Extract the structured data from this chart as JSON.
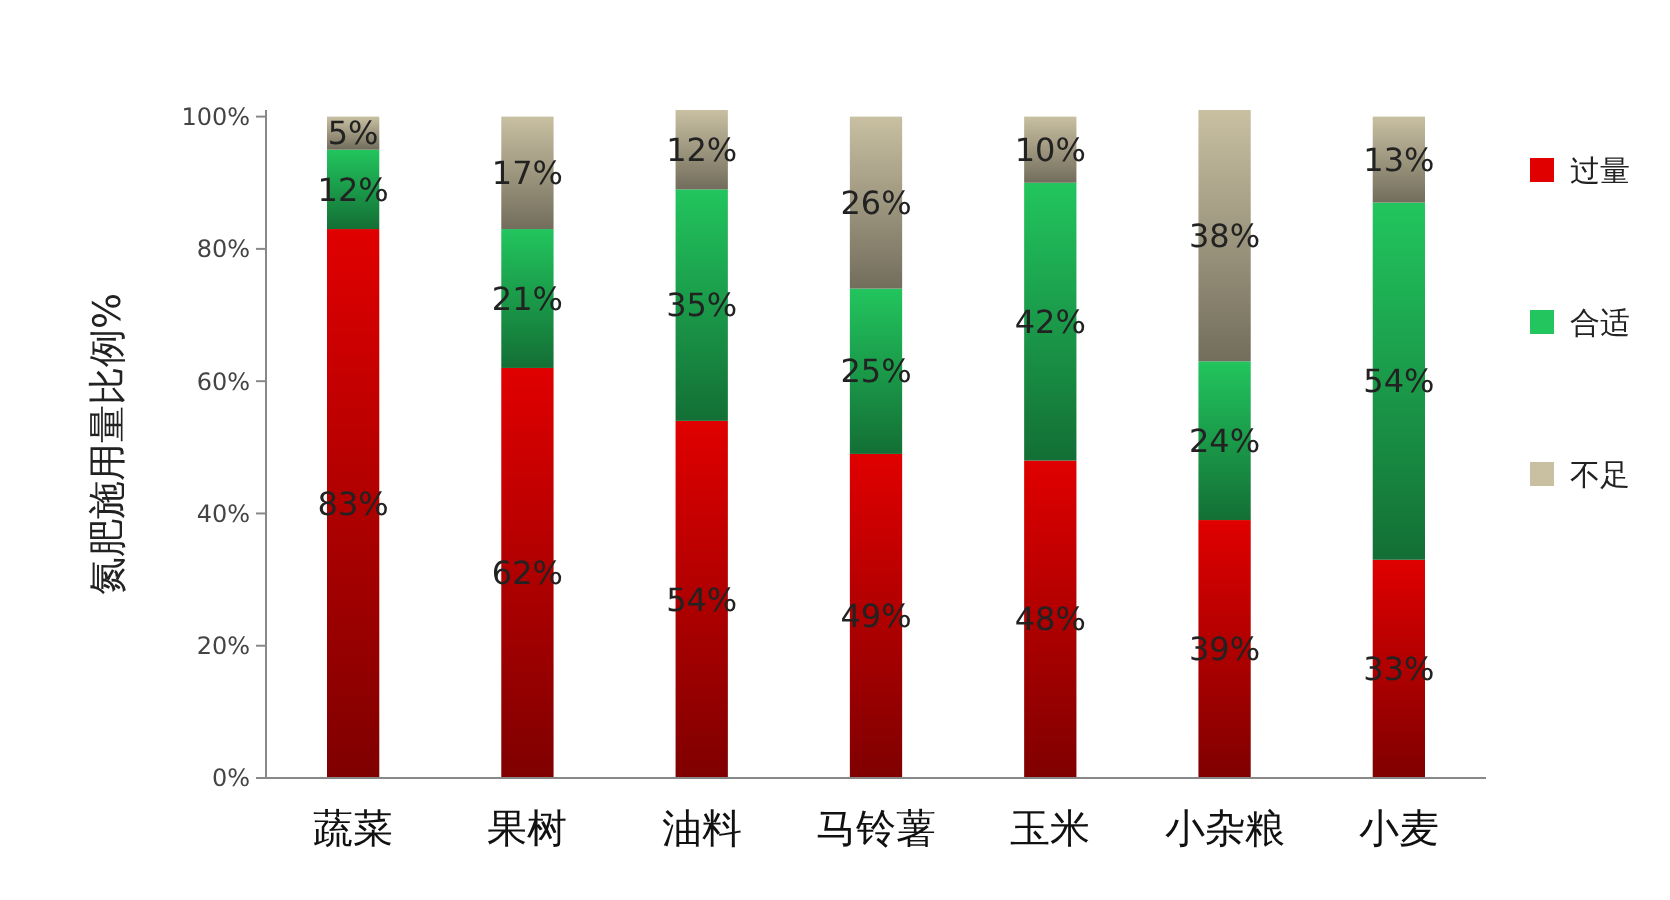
{
  "chart_data": {
    "type": "bar",
    "stacked": true,
    "ylabel": "氮肥施用量比例%",
    "categories": [
      "蔬菜",
      "果树",
      "油料",
      "马铃薯",
      "玉米",
      "小杂粮",
      "小麦"
    ],
    "series": [
      {
        "name": "过量",
        "color": "#e00000",
        "values": [
          83,
          62,
          54,
          49,
          48,
          39,
          33
        ],
        "value_labels": [
          "83%",
          "62%",
          "54%",
          "49%",
          "48%",
          "39%",
          "33%"
        ]
      },
      {
        "name": "合适",
        "color": "#22c55e",
        "values": [
          12,
          21,
          35,
          25,
          42,
          24,
          54
        ],
        "value_labels": [
          "12%",
          "21%",
          "35%",
          "25%",
          "42%",
          "24%",
          "54%"
        ]
      },
      {
        "name": "不足",
        "color": "#c9c0a2",
        "values": [
          5,
          17,
          12,
          26,
          10,
          38,
          13
        ],
        "value_labels": [
          "5%",
          "17%",
          "12%",
          "26%",
          "10%",
          "38%",
          "13%"
        ]
      }
    ],
    "ylim": [
      0,
      101
    ],
    "yticks": [
      {
        "value": 0,
        "label": "0%"
      },
      {
        "value": 20,
        "label": "20%"
      },
      {
        "value": 40,
        "label": "40%"
      },
      {
        "value": 60,
        "label": "60%"
      },
      {
        "value": 80,
        "label": "80%"
      },
      {
        "value": 100,
        "label": "100%"
      }
    ],
    "grid": false,
    "legend": "right"
  }
}
